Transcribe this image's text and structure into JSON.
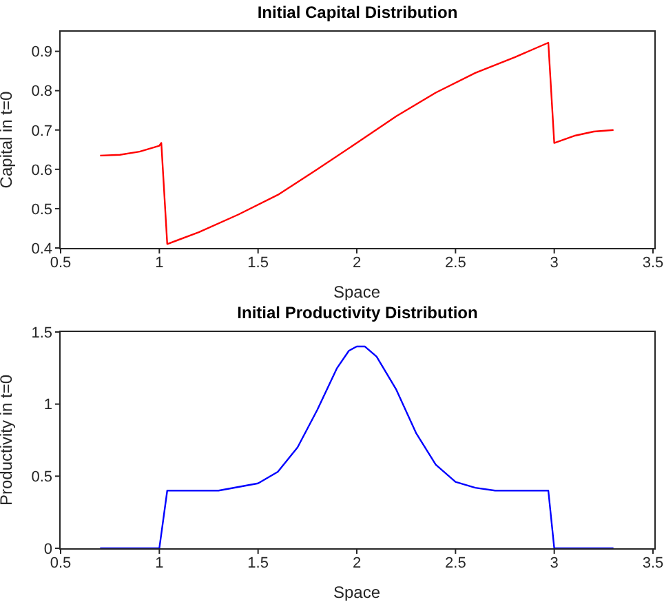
{
  "chart_data": [
    {
      "type": "line",
      "title": "Initial Capital Distribution",
      "xlabel": "Space",
      "ylabel": "Capital in t=0",
      "xlim": [
        0.5,
        3.5
      ],
      "xticks": [
        0.5,
        1,
        1.5,
        2,
        2.5,
        3,
        3.5
      ],
      "ylim": [
        0.4,
        0.95
      ],
      "yticks": [
        0.4,
        0.5,
        0.6,
        0.7,
        0.8,
        0.9
      ],
      "grid": false,
      "legend": false,
      "marker": "none",
      "line_style": "solid",
      "series": [
        {
          "color": "#ff0000",
          "x": [
            0.7,
            0.8,
            0.9,
            1.0,
            1.01,
            1.04,
            1.2,
            1.4,
            1.6,
            1.8,
            2.0,
            2.2,
            2.4,
            2.6,
            2.8,
            2.97,
            3.0,
            3.1,
            3.2,
            3.3
          ],
          "values": [
            0.635,
            0.637,
            0.645,
            0.66,
            0.667,
            0.41,
            0.44,
            0.485,
            0.535,
            0.6,
            0.667,
            0.735,
            0.795,
            0.845,
            0.885,
            0.922,
            0.667,
            0.685,
            0.696,
            0.7
          ]
        }
      ]
    },
    {
      "type": "line",
      "title": "Initial Productivity Distribution",
      "xlabel": "Space",
      "ylabel": "Productivity in t=0",
      "xlim": [
        0.5,
        3.5
      ],
      "xticks": [
        0.5,
        1,
        1.5,
        2,
        2.5,
        3,
        3.5
      ],
      "ylim": [
        0,
        1.5
      ],
      "yticks": [
        0,
        0.5,
        1,
        1.5
      ],
      "grid": false,
      "legend": false,
      "marker": "none",
      "line_style": "solid",
      "series": [
        {
          "color": "#0000ff",
          "x": [
            0.7,
            1.0,
            1.04,
            1.3,
            1.5,
            1.6,
            1.7,
            1.8,
            1.9,
            1.96,
            2.0,
            2.04,
            2.1,
            2.2,
            2.3,
            2.4,
            2.5,
            2.6,
            2.7,
            2.97,
            3.0,
            3.3
          ],
          "values": [
            0,
            0,
            0.4,
            0.4,
            0.45,
            0.53,
            0.7,
            0.96,
            1.25,
            1.37,
            1.4,
            1.4,
            1.33,
            1.1,
            0.8,
            0.58,
            0.46,
            0.42,
            0.4,
            0.4,
            0,
            0
          ]
        }
      ]
    }
  ]
}
